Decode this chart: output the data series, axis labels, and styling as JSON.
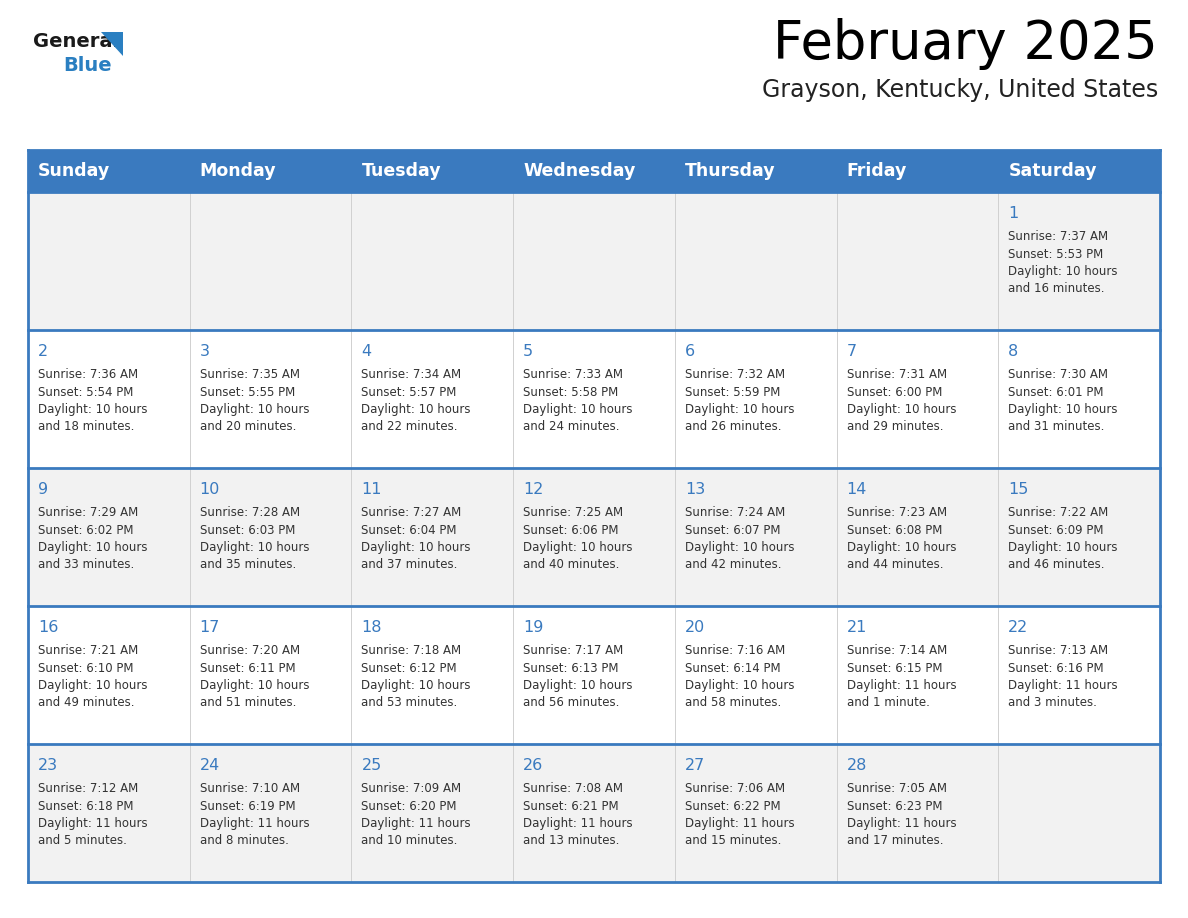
{
  "title": "February 2025",
  "subtitle": "Grayson, Kentucky, United States",
  "header_color": "#3a7abf",
  "header_text_color": "#FFFFFF",
  "row_bg_white": "#FFFFFF",
  "row_bg_gray": "#F2F2F2",
  "border_color": "#3a7abf",
  "divider_color": "#d0d0d0",
  "text_color": "#333333",
  "day_num_color": "#3a7abf",
  "days_of_week": [
    "Sunday",
    "Monday",
    "Tuesday",
    "Wednesday",
    "Thursday",
    "Friday",
    "Saturday"
  ],
  "weeks": [
    [
      {
        "day": "",
        "info": ""
      },
      {
        "day": "",
        "info": ""
      },
      {
        "day": "",
        "info": ""
      },
      {
        "day": "",
        "info": ""
      },
      {
        "day": "",
        "info": ""
      },
      {
        "day": "",
        "info": ""
      },
      {
        "day": "1",
        "info": "Sunrise: 7:37 AM\nSunset: 5:53 PM\nDaylight: 10 hours\nand 16 minutes."
      }
    ],
    [
      {
        "day": "2",
        "info": "Sunrise: 7:36 AM\nSunset: 5:54 PM\nDaylight: 10 hours\nand 18 minutes."
      },
      {
        "day": "3",
        "info": "Sunrise: 7:35 AM\nSunset: 5:55 PM\nDaylight: 10 hours\nand 20 minutes."
      },
      {
        "day": "4",
        "info": "Sunrise: 7:34 AM\nSunset: 5:57 PM\nDaylight: 10 hours\nand 22 minutes."
      },
      {
        "day": "5",
        "info": "Sunrise: 7:33 AM\nSunset: 5:58 PM\nDaylight: 10 hours\nand 24 minutes."
      },
      {
        "day": "6",
        "info": "Sunrise: 7:32 AM\nSunset: 5:59 PM\nDaylight: 10 hours\nand 26 minutes."
      },
      {
        "day": "7",
        "info": "Sunrise: 7:31 AM\nSunset: 6:00 PM\nDaylight: 10 hours\nand 29 minutes."
      },
      {
        "day": "8",
        "info": "Sunrise: 7:30 AM\nSunset: 6:01 PM\nDaylight: 10 hours\nand 31 minutes."
      }
    ],
    [
      {
        "day": "9",
        "info": "Sunrise: 7:29 AM\nSunset: 6:02 PM\nDaylight: 10 hours\nand 33 minutes."
      },
      {
        "day": "10",
        "info": "Sunrise: 7:28 AM\nSunset: 6:03 PM\nDaylight: 10 hours\nand 35 minutes."
      },
      {
        "day": "11",
        "info": "Sunrise: 7:27 AM\nSunset: 6:04 PM\nDaylight: 10 hours\nand 37 minutes."
      },
      {
        "day": "12",
        "info": "Sunrise: 7:25 AM\nSunset: 6:06 PM\nDaylight: 10 hours\nand 40 minutes."
      },
      {
        "day": "13",
        "info": "Sunrise: 7:24 AM\nSunset: 6:07 PM\nDaylight: 10 hours\nand 42 minutes."
      },
      {
        "day": "14",
        "info": "Sunrise: 7:23 AM\nSunset: 6:08 PM\nDaylight: 10 hours\nand 44 minutes."
      },
      {
        "day": "15",
        "info": "Sunrise: 7:22 AM\nSunset: 6:09 PM\nDaylight: 10 hours\nand 46 minutes."
      }
    ],
    [
      {
        "day": "16",
        "info": "Sunrise: 7:21 AM\nSunset: 6:10 PM\nDaylight: 10 hours\nand 49 minutes."
      },
      {
        "day": "17",
        "info": "Sunrise: 7:20 AM\nSunset: 6:11 PM\nDaylight: 10 hours\nand 51 minutes."
      },
      {
        "day": "18",
        "info": "Sunrise: 7:18 AM\nSunset: 6:12 PM\nDaylight: 10 hours\nand 53 minutes."
      },
      {
        "day": "19",
        "info": "Sunrise: 7:17 AM\nSunset: 6:13 PM\nDaylight: 10 hours\nand 56 minutes."
      },
      {
        "day": "20",
        "info": "Sunrise: 7:16 AM\nSunset: 6:14 PM\nDaylight: 10 hours\nand 58 minutes."
      },
      {
        "day": "21",
        "info": "Sunrise: 7:14 AM\nSunset: 6:15 PM\nDaylight: 11 hours\nand 1 minute."
      },
      {
        "day": "22",
        "info": "Sunrise: 7:13 AM\nSunset: 6:16 PM\nDaylight: 11 hours\nand 3 minutes."
      }
    ],
    [
      {
        "day": "23",
        "info": "Sunrise: 7:12 AM\nSunset: 6:18 PM\nDaylight: 11 hours\nand 5 minutes."
      },
      {
        "day": "24",
        "info": "Sunrise: 7:10 AM\nSunset: 6:19 PM\nDaylight: 11 hours\nand 8 minutes."
      },
      {
        "day": "25",
        "info": "Sunrise: 7:09 AM\nSunset: 6:20 PM\nDaylight: 11 hours\nand 10 minutes."
      },
      {
        "day": "26",
        "info": "Sunrise: 7:08 AM\nSunset: 6:21 PM\nDaylight: 11 hours\nand 13 minutes."
      },
      {
        "day": "27",
        "info": "Sunrise: 7:06 AM\nSunset: 6:22 PM\nDaylight: 11 hours\nand 15 minutes."
      },
      {
        "day": "28",
        "info": "Sunrise: 7:05 AM\nSunset: 6:23 PM\nDaylight: 11 hours\nand 17 minutes."
      },
      {
        "day": "",
        "info": ""
      }
    ]
  ],
  "logo_general_color": "#1a1a1a",
  "logo_blue_color": "#2a7fc1",
  "logo_triangle_color": "#2a7fc1",
  "fig_width": 11.88,
  "fig_height": 9.18,
  "dpi": 100
}
